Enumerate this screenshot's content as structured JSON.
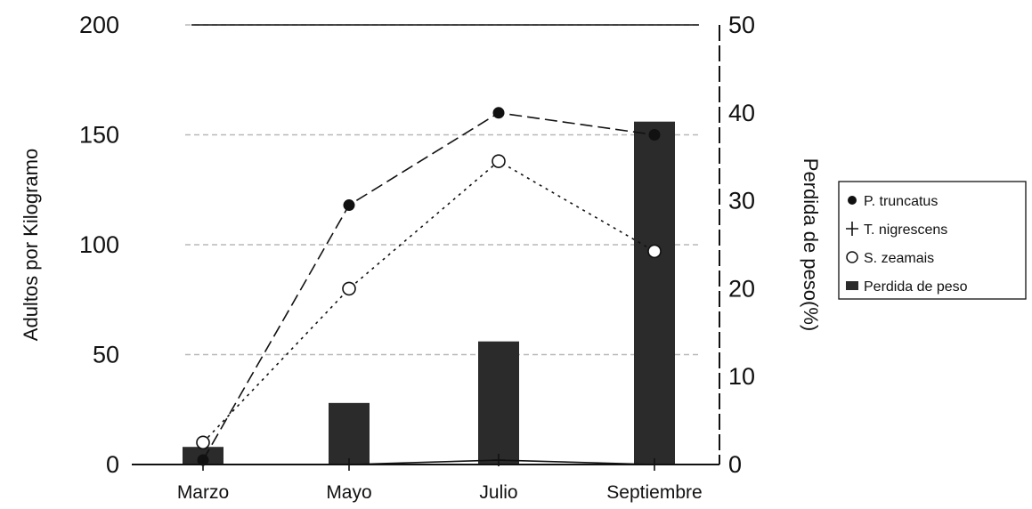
{
  "chart_data": {
    "type": "bar",
    "categories": [
      "Marzo",
      "Mayo",
      "Julio",
      "Septiembre"
    ],
    "ylabel_left": "Adultos por Kilogramo",
    "ylabel_right": "Perdida de peso(%)",
    "ylim_left": [
      0,
      200
    ],
    "ylim_right": [
      0,
      50
    ],
    "yticks_left": [
      "0",
      "50",
      "100",
      "150",
      "200"
    ],
    "yticks_right": [
      "0",
      "10",
      "20",
      "30",
      "40",
      "50"
    ],
    "grid": true,
    "legend_position": "right",
    "series": [
      {
        "name": "P. truncatus",
        "kind": "line",
        "axis": "left",
        "marker": "filled-circle",
        "values": [
          2,
          118,
          160,
          150
        ]
      },
      {
        "name": "T. nigrescens",
        "kind": "line",
        "axis": "left",
        "marker": "plus",
        "values": [
          0,
          0,
          2,
          0
        ]
      },
      {
        "name": "S. zeamais",
        "kind": "line",
        "axis": "left",
        "marker": "open-circle",
        "values": [
          10,
          80,
          138,
          97
        ]
      },
      {
        "name": "Perdida de peso",
        "kind": "bar",
        "axis": "right",
        "values": [
          2,
          7,
          14,
          39
        ]
      }
    ],
    "colors": {
      "ink": "#111111",
      "bar": "#2b2b2b",
      "grid": "#b8b8b8"
    }
  }
}
